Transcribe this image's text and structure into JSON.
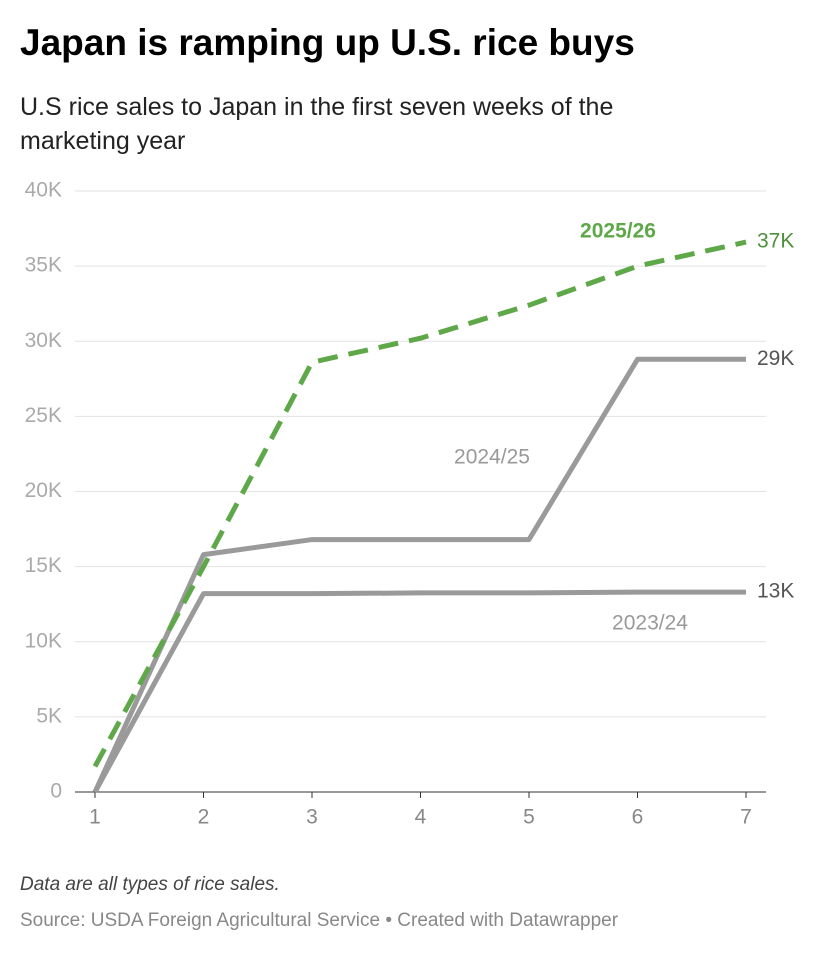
{
  "chart_data": {
    "type": "line",
    "title": "Japan is ramping up U.S. rice buys",
    "subtitle": "U.S rice sales to Japan in the first seven weeks of the marketing year",
    "note": "Data are all types of rice sales.",
    "source": "Source: USDA Foreign Agricultural Service • Created with Datawrapper",
    "x": [
      1,
      2,
      3,
      4,
      5,
      6,
      7
    ],
    "xlim": [
      1,
      7
    ],
    "xticks": [
      1,
      2,
      3,
      4,
      5,
      6,
      7
    ],
    "ylim": [
      0,
      40
    ],
    "yticks": [
      0,
      {
        "value": 5,
        "label": "5K"
      },
      {
        "value": 10,
        "label": "10K"
      },
      {
        "value": 15,
        "label": "15K"
      },
      {
        "value": 20,
        "label": "20K"
      },
      {
        "value": 25,
        "label": "25K"
      },
      {
        "value": 30,
        "label": "30K"
      },
      {
        "value": 35,
        "label": "35K"
      },
      {
        "value": 40,
        "label": "40K"
      }
    ],
    "grid": true,
    "series": [
      {
        "name": "2025/26",
        "color": "#5fa84a",
        "dashed": true,
        "values": [
          1.7,
          15.0,
          28.6,
          30.2,
          32.4,
          35.0,
          36.6
        ],
        "value_labels": [
          null,
          null,
          null,
          null,
          null,
          null,
          "37K"
        ]
      },
      {
        "name": "2024/25",
        "color": "#9a9a9a",
        "dashed": false,
        "values": [
          0,
          15.8,
          16.8,
          16.8,
          16.8,
          28.8,
          28.8
        ],
        "value_labels": [
          null,
          null,
          null,
          null,
          null,
          null,
          "29K"
        ]
      },
      {
        "name": "2023/24",
        "color": "#9a9a9a",
        "dashed": false,
        "values": [
          0,
          13.2,
          13.2,
          13.25,
          13.25,
          13.3,
          13.3
        ],
        "value_labels": [
          null,
          null,
          null,
          null,
          null,
          null,
          "13K"
        ]
      }
    ]
  }
}
